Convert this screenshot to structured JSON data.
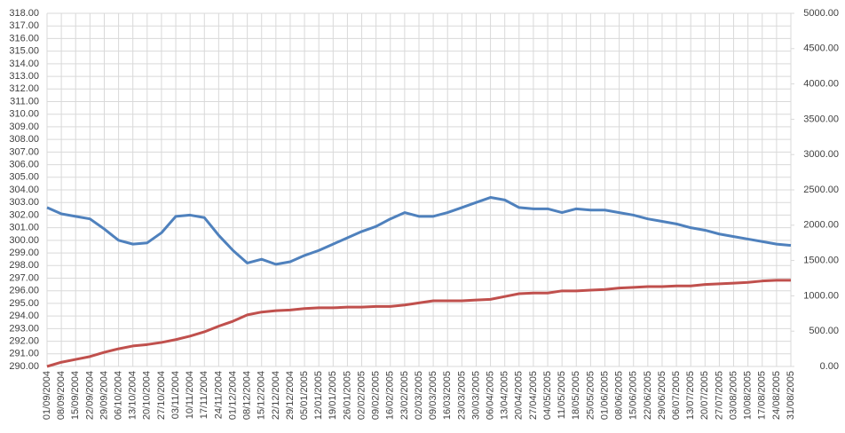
{
  "chart_data": {
    "type": "line",
    "categories": [
      "01/09/2004",
      "08/09/2004",
      "15/09/2004",
      "22/09/2004",
      "29/09/2004",
      "06/10/2004",
      "13/10/2004",
      "20/10/2004",
      "27/10/2004",
      "03/11/2004",
      "10/11/2004",
      "17/11/2004",
      "24/11/2004",
      "01/12/2004",
      "08/12/2004",
      "15/12/2004",
      "22/12/2004",
      "29/12/2004",
      "05/01/2005",
      "12/01/2005",
      "19/01/2005",
      "26/01/2005",
      "02/02/2005",
      "09/02/2005",
      "16/02/2005",
      "23/02/2005",
      "02/03/2005",
      "09/03/2005",
      "16/03/2005",
      "23/03/2005",
      "30/03/2005",
      "06/04/2005",
      "13/04/2005",
      "20/04/2005",
      "27/04/2005",
      "04/05/2005",
      "11/05/2005",
      "18/05/2005",
      "25/05/2005",
      "01/06/2005",
      "08/06/2005",
      "15/06/2005",
      "22/06/2005",
      "29/06/2005",
      "06/07/2005",
      "13/07/2005",
      "20/07/2005",
      "27/07/2005",
      "03/08/2005",
      "10/08/2005",
      "17/08/2005",
      "24/08/2005",
      "31/08/2005"
    ],
    "series": [
      {
        "color": "#4f81bd",
        "values": [
          302.6,
          302.1,
          301.9,
          301.7,
          300.9,
          300.0,
          299.7,
          299.8,
          300.6,
          301.9,
          302.0,
          301.8,
          300.4,
          299.2,
          298.2,
          298.5,
          298.1,
          298.3,
          298.8,
          299.2,
          299.7,
          300.2,
          300.7,
          301.1,
          301.7,
          302.2,
          301.9,
          301.9,
          302.2,
          302.6,
          303.0,
          303.4,
          303.2,
          302.6,
          302.5,
          302.5,
          302.2,
          302.5,
          302.4,
          302.4,
          302.2,
          302.0,
          301.7,
          301.5,
          301.3,
          301.0,
          300.8,
          300.5,
          300.3,
          300.1,
          299.9,
          299.7,
          299.6
        ]
      },
      {
        "color": "#c0504d",
        "axis": "y2",
        "values": [
          0,
          60,
          100,
          140,
          200,
          250,
          290,
          310,
          340,
          380,
          430,
          490,
          570,
          640,
          730,
          770,
          790,
          800,
          820,
          830,
          830,
          840,
          840,
          850,
          850,
          870,
          900,
          930,
          930,
          930,
          940,
          950,
          990,
          1030,
          1040,
          1040,
          1070,
          1070,
          1080,
          1090,
          1110,
          1120,
          1130,
          1130,
          1140,
          1140,
          1160,
          1170,
          1180,
          1190,
          1210,
          1220,
          1220
        ]
      }
    ],
    "ylim": [
      290,
      318
    ],
    "yticks": [
      {
        "value": 290,
        "label": "290.00"
      },
      {
        "value": 291,
        "label": "291.00"
      },
      {
        "value": 292,
        "label": "292.00"
      },
      {
        "value": 293,
        "label": "293.00"
      },
      {
        "value": 294,
        "label": "294.00"
      },
      {
        "value": 295,
        "label": "295.00"
      },
      {
        "value": 296,
        "label": "296.00"
      },
      {
        "value": 297,
        "label": "297.00"
      },
      {
        "value": 298,
        "label": "298.00"
      },
      {
        "value": 299,
        "label": "299.00"
      },
      {
        "value": 300,
        "label": "300.00"
      },
      {
        "value": 301,
        "label": "301.00"
      },
      {
        "value": 302,
        "label": "302.00"
      },
      {
        "value": 303,
        "label": "303.00"
      },
      {
        "value": 304,
        "label": "304.00"
      },
      {
        "value": 305,
        "label": "305.00"
      },
      {
        "value": 306,
        "label": "306.00"
      },
      {
        "value": 307,
        "label": "307.00"
      },
      {
        "value": 308,
        "label": "308.00"
      },
      {
        "value": 309,
        "label": "309.00"
      },
      {
        "value": 310,
        "label": "310.00"
      },
      {
        "value": 311,
        "label": "311.00"
      },
      {
        "value": 312,
        "label": "312.00"
      },
      {
        "value": 313,
        "label": "313.00"
      },
      {
        "value": 314,
        "label": "314.00"
      },
      {
        "value": 315,
        "label": "315.00"
      },
      {
        "value": 316,
        "label": "316.00"
      },
      {
        "value": 317,
        "label": "317.00"
      },
      {
        "value": 318,
        "label": "318.00"
      }
    ],
    "y2lim": [
      0,
      5000
    ],
    "y2ticks": [
      {
        "value": 0,
        "label": "0.00"
      },
      {
        "value": 500,
        "label": "500.00"
      },
      {
        "value": 1000,
        "label": "1000.00"
      },
      {
        "value": 1500,
        "label": "1500.00"
      },
      {
        "value": 2000,
        "label": "2000.00"
      },
      {
        "value": 2500,
        "label": "2500.00"
      },
      {
        "value": 3000,
        "label": "3000.00"
      },
      {
        "value": 3500,
        "label": "3500.00"
      },
      {
        "value": 4000,
        "label": "4000.00"
      },
      {
        "value": 4500,
        "label": "4500.00"
      },
      {
        "value": 5000,
        "label": "5000.00"
      }
    ],
    "grid": true
  }
}
